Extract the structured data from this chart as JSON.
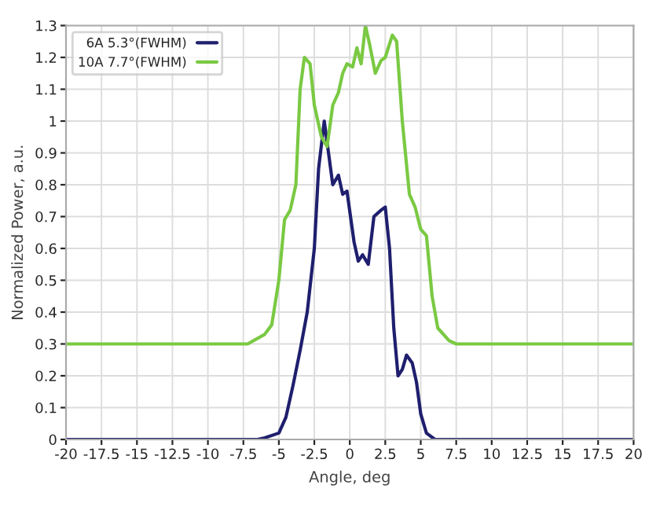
{
  "chart_data": {
    "type": "line",
    "xlabel": "Angle, deg",
    "ylabel": "Normalized Power, a.u.",
    "xlim": [
      -20,
      20
    ],
    "ylim": [
      0,
      1.3
    ],
    "xticks": [
      -20,
      -17.5,
      -15,
      -12.5,
      -10,
      -7.5,
      -5,
      -2.5,
      0,
      2.5,
      5,
      7.5,
      10,
      12.5,
      15,
      17.5,
      20
    ],
    "yticks": [
      0,
      0.1,
      0.2,
      0.3,
      0.4,
      0.5,
      0.6,
      0.7,
      0.8,
      0.9,
      1,
      1.1,
      1.2,
      1.3
    ],
    "grid": true,
    "legend": "top left",
    "marker": "none",
    "line_style": "solid",
    "series": [
      {
        "name": "6A 5.3°(FWHM)",
        "color": "#1f1f6e",
        "x": [
          -20,
          -6.5,
          -6,
          -5,
          -4.5,
          -4,
          -3.5,
          -3,
          -2.5,
          -2.2,
          -1.8,
          -1.5,
          -1.2,
          -0.8,
          -0.5,
          -0.2,
          0.3,
          0.6,
          0.9,
          1.3,
          1.7,
          2.2,
          2.5,
          2.8,
          3.1,
          3.4,
          3.7,
          4.0,
          4.4,
          4.7,
          5.0,
          5.4,
          6,
          20
        ],
        "values": [
          0,
          0,
          0.005,
          0.02,
          0.07,
          0.17,
          0.28,
          0.4,
          0.6,
          0.85,
          1.0,
          0.9,
          0.8,
          0.83,
          0.77,
          0.78,
          0.62,
          0.56,
          0.58,
          0.55,
          0.7,
          0.72,
          0.73,
          0.6,
          0.35,
          0.2,
          0.22,
          0.265,
          0.24,
          0.18,
          0.08,
          0.02,
          0,
          0
        ]
      },
      {
        "name": "10A 7.7°(FWHM)",
        "color": "#7ac943",
        "x": [
          -20,
          -7.2,
          -6,
          -5.5,
          -5,
          -4.6,
          -4.2,
          -3.8,
          -3.5,
          -3.2,
          -2.8,
          -2.5,
          -2,
          -1.6,
          -1.2,
          -0.8,
          -0.5,
          -0.2,
          0.2,
          0.5,
          0.8,
          1.1,
          1.4,
          1.8,
          2.2,
          2.5,
          3,
          3.3,
          3.7,
          4.2,
          4.6,
          5.0,
          5.4,
          5.8,
          6.2,
          7,
          7.5,
          20
        ],
        "values": [
          0.3,
          0.3,
          0.33,
          0.36,
          0.5,
          0.69,
          0.72,
          0.8,
          1.1,
          1.2,
          1.18,
          1.05,
          0.95,
          0.92,
          1.05,
          1.09,
          1.15,
          1.18,
          1.17,
          1.23,
          1.18,
          1.3,
          1.24,
          1.15,
          1.19,
          1.2,
          1.27,
          1.25,
          1.0,
          0.77,
          0.73,
          0.66,
          0.64,
          0.45,
          0.35,
          0.31,
          0.3,
          0.3
        ]
      }
    ]
  }
}
